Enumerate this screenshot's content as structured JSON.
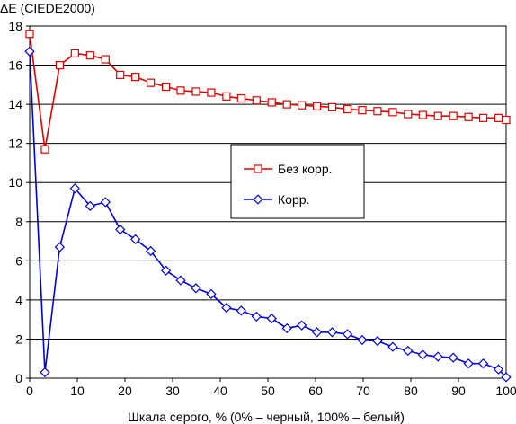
{
  "chart_data": {
    "type": "line",
    "title": "",
    "ylabel": "ΔE (CIEDE2000)",
    "xlabel": "Шкала серого, % (0% – черный, 100% – белый)",
    "xlim": [
      0,
      100
    ],
    "ylim": [
      0,
      18
    ],
    "x_ticks": [
      0,
      10,
      20,
      30,
      40,
      50,
      60,
      70,
      80,
      90,
      100
    ],
    "y_ticks": [
      0,
      2,
      4,
      6,
      8,
      10,
      12,
      14,
      16,
      18
    ],
    "grid": "horizontal",
    "legend_position": "center-right",
    "x": [
      0,
      3.2,
      6.3,
      9.5,
      12.7,
      15.9,
      19.0,
      22.2,
      25.4,
      28.6,
      31.7,
      34.9,
      38.1,
      41.3,
      44.4,
      47.6,
      50.8,
      54.0,
      57.1,
      60.3,
      63.5,
      66.7,
      69.8,
      73.0,
      76.2,
      79.4,
      82.5,
      85.7,
      88.9,
      92.1,
      95.2,
      98.4,
      100
    ],
    "series": [
      {
        "name": "Без корр.",
        "color": "#e00000",
        "marker": "square",
        "values": [
          17.6,
          11.7,
          16.0,
          16.6,
          16.5,
          16.3,
          15.5,
          15.4,
          15.1,
          14.9,
          14.7,
          14.65,
          14.6,
          14.4,
          14.3,
          14.2,
          14.1,
          14.0,
          13.95,
          13.9,
          13.85,
          13.75,
          13.7,
          13.65,
          13.6,
          13.5,
          13.45,
          13.4,
          13.4,
          13.35,
          13.3,
          13.3,
          13.2
        ]
      },
      {
        "name": "Корр.",
        "color": "#0000e0",
        "marker": "diamond",
        "values": [
          16.7,
          0.3,
          6.7,
          9.7,
          8.8,
          9.0,
          7.6,
          7.1,
          6.5,
          5.5,
          5.0,
          4.6,
          4.3,
          3.6,
          3.45,
          3.15,
          3.05,
          2.55,
          2.7,
          2.35,
          2.35,
          2.25,
          1.95,
          1.9,
          1.6,
          1.4,
          1.2,
          1.1,
          1.05,
          0.75,
          0.75,
          0.45,
          0.05
        ]
      }
    ]
  }
}
